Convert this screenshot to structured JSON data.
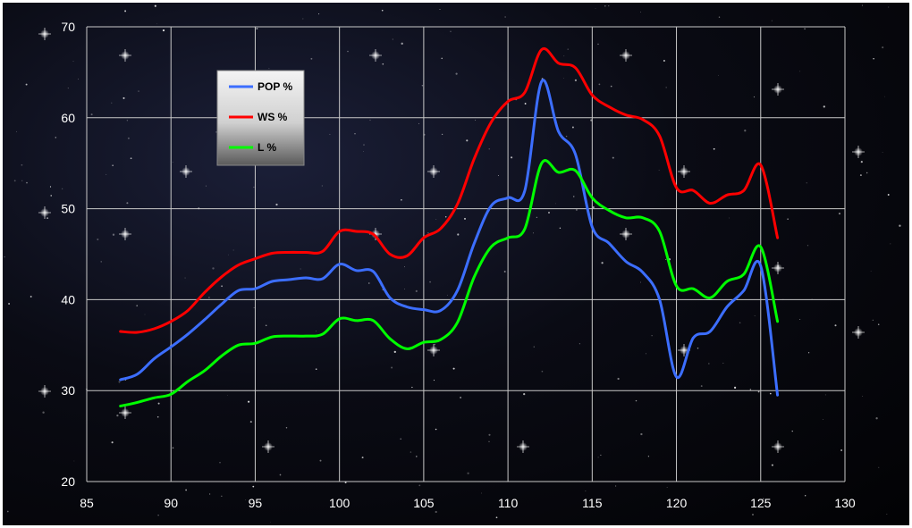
{
  "chart_data": {
    "type": "line",
    "xlim": [
      85,
      130
    ],
    "ylim": [
      20,
      70
    ],
    "xticks": [
      85,
      90,
      95,
      100,
      105,
      110,
      115,
      120,
      125,
      130
    ],
    "yticks": [
      20,
      30,
      40,
      50,
      60,
      70
    ],
    "grid": true,
    "legend_position": "top-left",
    "series": [
      {
        "name": "POP %",
        "color": "#3c6eff",
        "x": [
          87,
          88,
          89,
          90,
          91,
          92,
          93,
          94,
          95,
          96,
          97,
          98,
          99,
          100,
          101,
          102,
          103,
          104,
          105,
          106,
          107,
          108,
          109,
          110,
          111,
          112,
          113,
          114,
          115,
          116,
          117,
          118,
          119,
          120,
          121,
          122,
          123,
          124,
          125,
          126
        ],
        "y": [
          31.2,
          31.8,
          33.5,
          34.8,
          36.2,
          37.8,
          39.5,
          41,
          41.2,
          42,
          42.2,
          42.4,
          42.3,
          43.9,
          43.2,
          43.1,
          40.2,
          39.2,
          38.9,
          38.8,
          41,
          46.2,
          50.3,
          51.2,
          52,
          64,
          58.5,
          56,
          48,
          46.2,
          44.2,
          43,
          40,
          31.5,
          35.8,
          36.5,
          39.2,
          41,
          43.7,
          29.5
        ]
      },
      {
        "name": "WS %",
        "color": "#ff0000",
        "x": [
          87,
          88,
          89,
          90,
          91,
          92,
          93,
          94,
          95,
          96,
          97,
          98,
          99,
          100,
          101,
          102,
          103,
          104,
          105,
          106,
          107,
          108,
          109,
          110,
          111,
          112,
          113,
          114,
          115,
          116,
          117,
          118,
          119,
          120,
          121,
          122,
          123,
          124,
          125,
          126
        ],
        "y": [
          36.5,
          36.4,
          36.8,
          37.6,
          38.8,
          40.8,
          42.5,
          43.8,
          44.5,
          45.1,
          45.2,
          45.2,
          45.3,
          47.5,
          47.5,
          47.2,
          45,
          44.8,
          46.8,
          47.8,
          50.5,
          55.5,
          59.5,
          61.8,
          62.8,
          67.5,
          66,
          65.5,
          62.5,
          61.2,
          60.3,
          59.8,
          58,
          52.3,
          52,
          50.6,
          51.5,
          52,
          54.8,
          46.8
        ]
      },
      {
        "name": "L %",
        "color": "#00ff00",
        "x": [
          87,
          88,
          89,
          90,
          91,
          92,
          93,
          94,
          95,
          96,
          97,
          98,
          99,
          100,
          101,
          102,
          103,
          104,
          105,
          106,
          107,
          108,
          109,
          110,
          111,
          112,
          113,
          114,
          115,
          116,
          117,
          118,
          119,
          120,
          121,
          122,
          123,
          124,
          125,
          126
        ],
        "y": [
          28.3,
          28.7,
          29.2,
          29.6,
          31,
          32.2,
          33.8,
          35,
          35.2,
          35.9,
          36,
          36,
          36.2,
          37.9,
          37.7,
          37.7,
          35.7,
          34.6,
          35.3,
          35.6,
          37.5,
          42.5,
          45.8,
          46.8,
          47.8,
          55,
          54,
          54.2,
          51.2,
          49.8,
          49,
          49,
          47.5,
          41.5,
          41.2,
          40.2,
          42,
          42.8,
          45.8,
          37.6
        ]
      }
    ]
  }
}
